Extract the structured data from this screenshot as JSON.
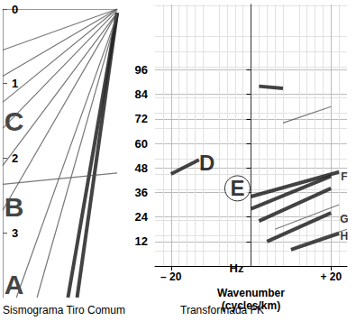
{
  "chart_data": [
    {
      "type": "seismogram",
      "caption": "Sismograma Tiro Comum",
      "xlim": [
        0,
        1
      ],
      "ylim": [
        0,
        3.87
      ],
      "yticks": [
        0,
        1,
        2,
        3
      ],
      "tick_labels": "y",
      "grid": false,
      "events": [
        {
          "points": [
            [
              1,
              0.05
            ],
            [
              0.57,
              3.87
            ]
          ],
          "line_style": "thick"
        },
        {
          "points": [
            [
              1,
              0.05
            ],
            [
              0.65,
              3.87
            ]
          ],
          "line_style": "thick"
        },
        {
          "points": [
            [
              1,
              0
            ],
            [
              0,
              0.55
            ]
          ],
          "line_style": "thin"
        },
        {
          "points": [
            [
              1,
              0
            ],
            [
              0,
              0.9
            ]
          ],
          "line_style": "thin"
        },
        {
          "points": [
            [
              1,
              0
            ],
            [
              0,
              1.25
            ]
          ],
          "line_style": "thin"
        },
        {
          "points": [
            [
              1,
              0.02
            ],
            [
              0,
              1.6
            ]
          ],
          "line_style": "thin"
        },
        {
          "points": [
            [
              1,
              0.05
            ],
            [
              0,
              2.1
            ]
          ],
          "line_style": "thin"
        },
        {
          "points": [
            [
              1,
              0.05
            ],
            [
              0,
              2.7
            ]
          ],
          "line_style": "thin"
        },
        {
          "points": [
            [
              1,
              0.08
            ],
            [
              0.12,
              3.87
            ]
          ],
          "line_style": "thin"
        },
        {
          "points": [
            [
              1,
              0.08
            ],
            [
              0.3,
              3.87
            ]
          ],
          "line_style": "thin"
        },
        {
          "points": [
            [
              0,
              2.35
            ],
            [
              1,
              2.2
            ]
          ],
          "line_style": "thin"
        }
      ],
      "annotations": [
        {
          "text": "C",
          "x": 0.1,
          "y": 1.5
        },
        {
          "text": "B",
          "x": 0.1,
          "y": 2.65
        },
        {
          "text": "A",
          "x": 0.1,
          "y": 3.7
        }
      ]
    },
    {
      "type": "fk",
      "caption": "Transformada FK",
      "xlabel": "Wavenumber\n(cycles/km)",
      "ylabel": "Hz",
      "xlim": [
        -24,
        24
      ],
      "ylim": [
        0,
        128
      ],
      "xticks": [
        {
          "value": -20,
          "label": "– 20"
        },
        {
          "value": 20,
          "label": "+ 20"
        }
      ],
      "yticks": [
        12,
        24,
        36,
        48,
        60,
        72,
        84,
        96
      ],
      "grid": true,
      "events": [
        {
          "points": [
            [
              0,
              0
            ],
            [
              0,
              128
            ]
          ],
          "line_style": "thin"
        },
        {
          "points": [
            [
              -20,
              45
            ],
            [
              -13,
              52
            ]
          ],
          "line_style": "thick"
        },
        {
          "points": [
            [
              2,
              88
            ],
            [
              8,
              87
            ]
          ],
          "line_style": "thick"
        },
        {
          "points": [
            [
              8,
              70
            ],
            [
              20,
              78
            ]
          ],
          "line_style": "thin"
        },
        {
          "points": [
            [
              0,
              28
            ],
            [
              20,
              44
            ]
          ],
          "line_style": "thick"
        },
        {
          "points": [
            [
              0,
              34
            ],
            [
              22,
              46
            ]
          ],
          "line_style": "thick"
        },
        {
          "points": [
            [
              2,
              22
            ],
            [
              20,
              38
            ]
          ],
          "line_style": "thick"
        },
        {
          "points": [
            [
              4,
              12
            ],
            [
              20,
              26
            ]
          ],
          "line_style": "thick"
        },
        {
          "points": [
            [
              6,
              18
            ],
            [
              22,
              30
            ]
          ],
          "line_style": "thin"
        },
        {
          "points": [
            [
              10,
              8
            ],
            [
              22,
              16
            ]
          ],
          "line_style": "thick"
        },
        {
          "points": [
            [
              12,
              10
            ],
            [
              24,
              18
            ]
          ],
          "line_style": "thin"
        }
      ],
      "annotations": [
        {
          "text": "D",
          "x": -11,
          "y": 50.5
        },
        {
          "text": "E",
          "x": -3.4,
          "y": 38
        },
        {
          "text": "F",
          "x": 23.3,
          "y": 43.6
        },
        {
          "text": "G",
          "x": 23.3,
          "y": 23
        },
        {
          "text": "H",
          "x": 23.3,
          "y": 14.5
        }
      ]
    }
  ]
}
